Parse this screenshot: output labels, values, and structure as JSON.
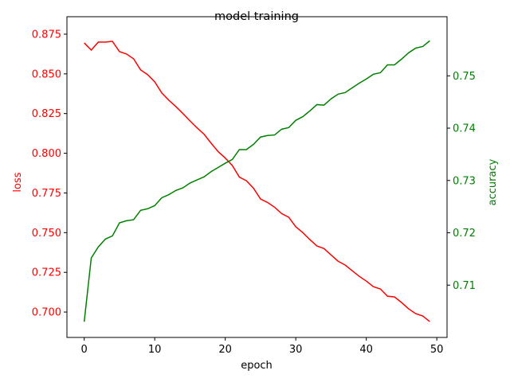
{
  "chart_data": {
    "type": "line",
    "title": "model training",
    "xlabel": "epoch",
    "ylabel": "loss",
    "y2label": "accuracy",
    "x": [
      0,
      1,
      2,
      3,
      4,
      5,
      6,
      7,
      8,
      9,
      10,
      11,
      12,
      13,
      14,
      15,
      16,
      17,
      18,
      19,
      20,
      21,
      22,
      23,
      24,
      25,
      26,
      27,
      28,
      29,
      30,
      31,
      32,
      33,
      34,
      35,
      36,
      37,
      38,
      39,
      40,
      41,
      42,
      43,
      44,
      45,
      46,
      47,
      48,
      49
    ],
    "series": [
      {
        "name": "loss",
        "color": "red",
        "axis": "y",
        "values": [
          0.8695,
          0.865,
          0.87,
          0.87,
          0.8705,
          0.864,
          0.8625,
          0.8595,
          0.8525,
          0.8495,
          0.845,
          0.838,
          0.8334,
          0.8294,
          0.825,
          0.8204,
          0.816,
          0.812,
          0.8063,
          0.801,
          0.797,
          0.7923,
          0.785,
          0.7827,
          0.778,
          0.7712,
          0.769,
          0.766,
          0.762,
          0.7597,
          0.7537,
          0.75,
          0.7456,
          0.7416,
          0.74,
          0.736,
          0.732,
          0.7296,
          0.726,
          0.7225,
          0.7195,
          0.716,
          0.7145,
          0.71,
          0.7095,
          0.706,
          0.702,
          0.699,
          0.6975,
          0.694
        ]
      },
      {
        "name": "accuracy",
        "color": "green",
        "axis": "y2",
        "values": [
          0.703,
          0.7152,
          0.7173,
          0.7188,
          0.7194,
          0.7219,
          0.7223,
          0.7225,
          0.7243,
          0.7246,
          0.7252,
          0.7267,
          0.7273,
          0.7281,
          0.7286,
          0.7295,
          0.7301,
          0.7307,
          0.7317,
          0.7325,
          0.7333,
          0.734,
          0.7359,
          0.7359,
          0.7369,
          0.7383,
          0.7386,
          0.7387,
          0.7398,
          0.7401,
          0.7415,
          0.7422,
          0.7433,
          0.7445,
          0.7444,
          0.7456,
          0.7465,
          0.7468,
          0.7477,
          0.7486,
          0.7494,
          0.7503,
          0.7506,
          0.7521,
          0.7521,
          0.7532,
          0.7544,
          0.7553,
          0.7556,
          0.7567
        ]
      }
    ],
    "xlim": [
      -2.45,
      51.45
    ],
    "xticks": [
      0,
      10,
      20,
      30,
      40,
      50
    ],
    "ylim": [
      0.684,
      0.886
    ],
    "yticks": [
      {
        "value": 0.7,
        "label": "0.700"
      },
      0.725,
      {
        "value": 0.75,
        "label": "0.750"
      },
      0.775,
      {
        "value": 0.8,
        "label": "0.800"
      },
      0.825,
      {
        "value": 0.85,
        "label": "0.850"
      },
      0.875
    ],
    "y2lim": [
      0.7,
      0.7613
    ],
    "y2ticks": [
      0.71,
      0.72,
      0.73,
      0.74,
      0.75
    ]
  }
}
